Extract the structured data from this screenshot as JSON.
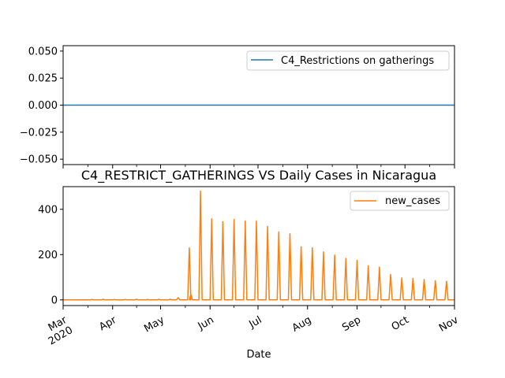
{
  "chart_data": [
    {
      "type": "line",
      "title": "",
      "xlabel": "",
      "ylabel": "",
      "ylim": [
        -0.055,
        0.055
      ],
      "yticks": [
        -0.05,
        -0.025,
        0.0,
        0.025,
        0.05
      ],
      "ytick_labels": [
        "−0.050",
        "−0.025",
        "0.000",
        "0.025",
        "0.050"
      ],
      "xlim": [
        "2020-03-01",
        "2020-11-01"
      ],
      "x_major_ticks": [
        "2020-03-01",
        "2020-04-01",
        "2020-05-01",
        "2020-06-01",
        "2020-07-01",
        "2020-08-01",
        "2020-09-01",
        "2020-10-01",
        "2020-11-01"
      ],
      "grid": false,
      "legend_loc": "top-right",
      "series": [
        {
          "name": "C4_Restrictions on gatherings",
          "color": "#1f77b4",
          "x": [
            "2020-03-01",
            "2020-11-01"
          ],
          "values": [
            0,
            0
          ]
        }
      ]
    },
    {
      "type": "line",
      "title": "C4_RESTRICT_GATHERINGS VS Daily Cases in Nicaragua",
      "xlabel": "Date",
      "ylabel": "",
      "ylim": [
        -25,
        500
      ],
      "yticks": [
        0,
        200,
        400
      ],
      "ytick_labels": [
        "0",
        "200",
        "400"
      ],
      "xlim": [
        "2020-03-01",
        "2020-11-01"
      ],
      "x_major_ticks": [
        "2020-03-01",
        "2020-04-01",
        "2020-05-01",
        "2020-06-01",
        "2020-07-01",
        "2020-08-01",
        "2020-09-01",
        "2020-10-01",
        "2020-11-01"
      ],
      "x_tick_labels": [
        "Mar\n2020",
        "Apr",
        "May",
        "Jun",
        "Jul",
        "Aug",
        "Sep",
        "Oct",
        "Nov"
      ],
      "grid": false,
      "legend_loc": "top-right",
      "series": [
        {
          "name": "new_cases",
          "color": "#ff7f0e",
          "baseline": 0,
          "x": [
            "2020-03-19",
            "2020-03-26",
            "2020-04-02",
            "2020-04-09",
            "2020-04-16",
            "2020-04-23",
            "2020-04-30",
            "2020-05-07",
            "2020-05-12",
            "2020-05-19",
            "2020-05-20",
            "2020-05-26",
            "2020-06-02",
            "2020-06-09",
            "2020-06-16",
            "2020-06-23",
            "2020-06-30",
            "2020-07-07",
            "2020-07-14",
            "2020-07-21",
            "2020-07-28",
            "2020-08-04",
            "2020-08-11",
            "2020-08-18",
            "2020-08-25",
            "2020-09-01",
            "2020-09-08",
            "2020-09-15",
            "2020-09-22",
            "2020-09-29",
            "2020-10-06",
            "2020-10-13",
            "2020-10-20",
            "2020-10-27"
          ],
          "values": [
            2,
            3,
            2,
            2,
            3,
            2,
            3,
            3,
            10,
            230,
            25,
            480,
            358,
            345,
            355,
            348,
            348,
            325,
            300,
            292,
            235,
            230,
            212,
            198,
            183,
            175,
            150,
            145,
            112,
            97,
            95,
            90,
            85,
            82
          ]
        }
      ]
    }
  ]
}
